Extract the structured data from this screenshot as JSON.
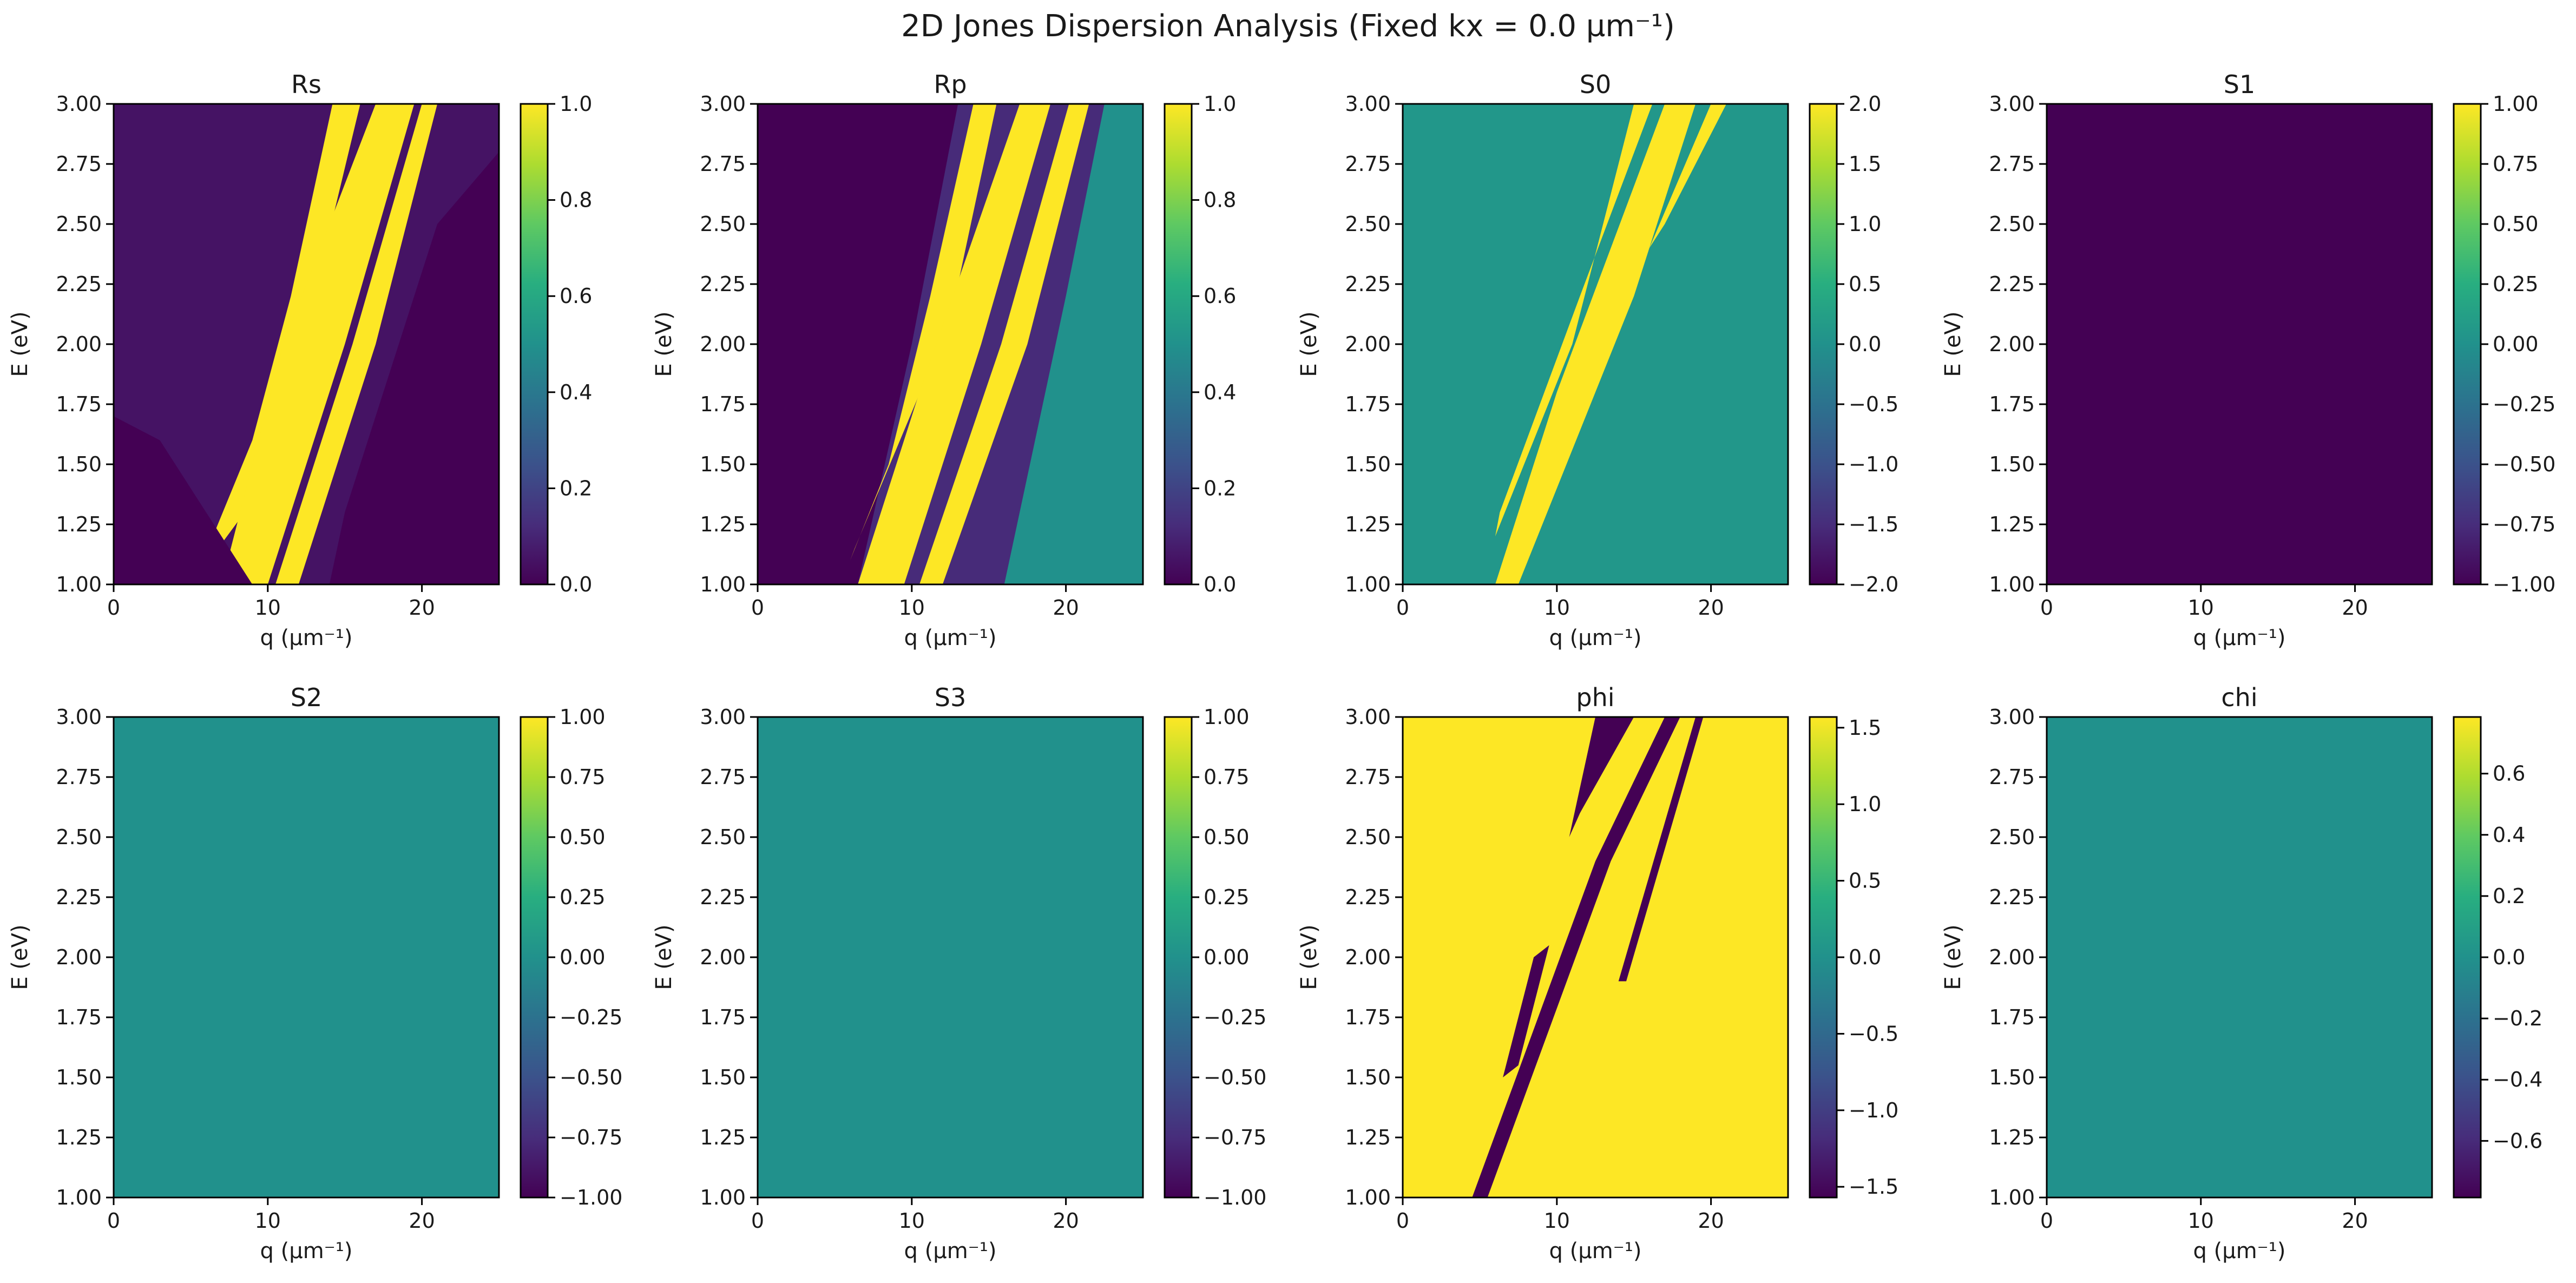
{
  "figure": {
    "title": "2D Jones Dispersion Analysis (Fixed kx = 0.0 µm⁻¹)"
  },
  "chart_data": [
    {
      "type": "heatmap",
      "title": "Rs",
      "xlabel": "q (µm⁻¹)",
      "ylabel": "E (eV)",
      "xlim": [
        0,
        25
      ],
      "ylim": [
        1.0,
        3.0
      ],
      "colormap": "viridis",
      "color_range": [
        0.0,
        1.0
      ],
      "background_value": 0.05,
      "xticks": [
        "0",
        "10",
        "20"
      ],
      "yticks": [
        "1.00",
        "1.25",
        "1.50",
        "1.75",
        "2.00",
        "2.25",
        "2.50",
        "2.75",
        "3.00"
      ],
      "colorbar_ticks": [
        {
          "value": 0.0,
          "label": "0.0"
        },
        {
          "value": 0.2,
          "label": "0.2"
        },
        {
          "value": 0.4,
          "label": "0.4"
        },
        {
          "value": 0.6,
          "label": "0.6"
        },
        {
          "value": 0.8,
          "label": "0.8"
        },
        {
          "value": 1.0,
          "label": "1.0"
        }
      ],
      "features": [
        {
          "kind": "band",
          "value": 1.0,
          "path": [
            [
              5.8,
              1.1
            ],
            [
              9.0,
              1.6
            ],
            [
              11.5,
              2.2
            ],
            [
              14.2,
              3.0
            ],
            [
              16.0,
              3.0
            ],
            [
              13.0,
              2.2
            ],
            [
              8.5,
              1.3
            ],
            [
              6.2,
              1.1
            ]
          ]
        },
        {
          "kind": "band",
          "value": 1.0,
          "path": [
            [
              7.0,
              1.0
            ],
            [
              10.0,
              1.0
            ],
            [
              15.0,
              2.0
            ],
            [
              19.5,
              3.0
            ],
            [
              17.0,
              3.0
            ],
            [
              11.0,
              2.0
            ]
          ]
        },
        {
          "kind": "band",
          "value": 1.0,
          "path": [
            [
              10.5,
              1.0
            ],
            [
              12.0,
              1.0
            ],
            [
              17.0,
              2.0
            ],
            [
              21.0,
              3.0
            ],
            [
              20.0,
              3.0
            ],
            [
              15.5,
              2.0
            ]
          ]
        },
        {
          "kind": "band",
          "value": 0.0,
          "path": [
            [
              0,
              1.0
            ],
            [
              9.0,
              1.0
            ],
            [
              3.0,
              1.6
            ],
            [
              0,
              1.7
            ]
          ]
        },
        {
          "kind": "band",
          "value": 0.0,
          "path": [
            [
              14.0,
              1.0
            ],
            [
              25.0,
              1.0
            ],
            [
              25.0,
              2.8
            ],
            [
              21.0,
              2.5
            ],
            [
              15.0,
              1.3
            ]
          ]
        }
      ]
    },
    {
      "type": "heatmap",
      "title": "Rp",
      "xlabel": "q (µm⁻¹)",
      "ylabel": "E (eV)",
      "xlim": [
        0,
        25
      ],
      "ylim": [
        1.0,
        3.0
      ],
      "colormap": "viridis",
      "color_range": [
        0.0,
        1.0
      ],
      "background_value": 0.12,
      "xticks": [
        "0",
        "10",
        "20"
      ],
      "yticks": [
        "1.00",
        "1.25",
        "1.50",
        "1.75",
        "2.00",
        "2.25",
        "2.50",
        "2.75",
        "3.00"
      ],
      "colorbar_ticks": [
        {
          "value": 0.0,
          "label": "0.0"
        },
        {
          "value": 0.2,
          "label": "0.2"
        },
        {
          "value": 0.4,
          "label": "0.4"
        },
        {
          "value": 0.6,
          "label": "0.6"
        },
        {
          "value": 0.8,
          "label": "0.8"
        },
        {
          "value": 1.0,
          "label": "1.0"
        }
      ],
      "features": [
        {
          "kind": "band",
          "value": 0.0,
          "path": [
            [
              0,
              1.0
            ],
            [
              6.5,
              1.0
            ],
            [
              10.0,
              2.0
            ],
            [
              13.0,
              3.0
            ],
            [
              0,
              3.0
            ]
          ]
        },
        {
          "kind": "band",
          "value": 0.5,
          "path": [
            [
              16.0,
              1.0
            ],
            [
              25.0,
              1.0
            ],
            [
              25.0,
              3.0
            ],
            [
              22.5,
              3.0
            ],
            [
              20.0,
              2.2
            ]
          ]
        },
        {
          "kind": "band",
          "value": 1.0,
          "path": [
            [
              6.0,
              1.1
            ],
            [
              8.5,
              1.5
            ],
            [
              11.2,
              2.2
            ],
            [
              14.0,
              3.0
            ],
            [
              15.5,
              3.0
            ],
            [
              12.5,
              2.1
            ],
            [
              6.3,
              1.15
            ]
          ]
        },
        {
          "kind": "band",
          "value": 1.0,
          "path": [
            [
              6.5,
              1.0
            ],
            [
              9.5,
              1.0
            ],
            [
              14.5,
              2.0
            ],
            [
              19.0,
              3.0
            ],
            [
              17.0,
              3.0
            ],
            [
              10.5,
              1.8
            ]
          ]
        },
        {
          "kind": "band",
          "value": 1.0,
          "path": [
            [
              10.5,
              1.0
            ],
            [
              12.0,
              1.0
            ],
            [
              17.5,
              2.0
            ],
            [
              21.5,
              3.0
            ],
            [
              20.2,
              3.0
            ],
            [
              15.8,
              2.0
            ]
          ]
        }
      ]
    },
    {
      "type": "heatmap",
      "title": "S0",
      "xlabel": "q (µm⁻¹)",
      "ylabel": "E (eV)",
      "xlim": [
        0,
        25
      ],
      "ylim": [
        1.0,
        3.0
      ],
      "colormap": "viridis",
      "color_range": [
        -2.0,
        2.0
      ],
      "background_value": 0.1,
      "xticks": [
        "0",
        "10",
        "20"
      ],
      "yticks": [
        "1.00",
        "1.25",
        "1.50",
        "1.75",
        "2.00",
        "2.25",
        "2.50",
        "2.75",
        "3.00"
      ],
      "colorbar_ticks": [
        {
          "value": -2.0,
          "label": "−2.0"
        },
        {
          "value": -1.5,
          "label": "−1.5"
        },
        {
          "value": -1.0,
          "label": "−1.0"
        },
        {
          "value": -0.5,
          "label": "−0.5"
        },
        {
          "value": 0.0,
          "label": "0.0"
        },
        {
          "value": 0.5,
          "label": "0.5"
        },
        {
          "value": 1.0,
          "label": "1.0"
        },
        {
          "value": 1.5,
          "label": "1.5"
        },
        {
          "value": 2.0,
          "label": "2.0"
        }
      ],
      "features": [
        {
          "kind": "band",
          "value": 2.0,
          "path": [
            [
              6.0,
              1.2
            ],
            [
              11.0,
              2.0
            ],
            [
              15.0,
              3.0
            ],
            [
              16.2,
              3.0
            ],
            [
              11.5,
              2.2
            ],
            [
              6.3,
              1.3
            ]
          ]
        },
        {
          "kind": "band",
          "value": 2.0,
          "path": [
            [
              6.0,
              1.0
            ],
            [
              7.5,
              1.0
            ],
            [
              15.0,
              2.2
            ],
            [
              19.0,
              3.0
            ],
            [
              17.0,
              3.0
            ],
            [
              10.0,
              1.8
            ]
          ]
        },
        {
          "kind": "band",
          "value": 2.0,
          "path": [
            [
              16.0,
              2.4
            ],
            [
              20.0,
              3.0
            ],
            [
              21.0,
              3.0
            ],
            [
              17.0,
              2.5
            ]
          ]
        }
      ]
    },
    {
      "type": "heatmap",
      "title": "S1",
      "xlabel": "q (µm⁻¹)",
      "ylabel": "E (eV)",
      "xlim": [
        0,
        25
      ],
      "ylim": [
        1.0,
        3.0
      ],
      "colormap": "viridis",
      "color_range": [
        -1.0,
        1.0
      ],
      "background_value": -1.0,
      "xticks": [
        "0",
        "10",
        "20"
      ],
      "yticks": [
        "1.00",
        "1.25",
        "1.50",
        "1.75",
        "2.00",
        "2.25",
        "2.50",
        "2.75",
        "3.00"
      ],
      "colorbar_ticks": [
        {
          "value": -1.0,
          "label": "−1.00"
        },
        {
          "value": -0.75,
          "label": "−0.75"
        },
        {
          "value": -0.5,
          "label": "−0.50"
        },
        {
          "value": -0.25,
          "label": "−0.25"
        },
        {
          "value": 0.0,
          "label": "0.00"
        },
        {
          "value": 0.25,
          "label": "0.25"
        },
        {
          "value": 0.5,
          "label": "0.50"
        },
        {
          "value": 0.75,
          "label": "0.75"
        },
        {
          "value": 1.0,
          "label": "1.00"
        }
      ],
      "features": []
    },
    {
      "type": "heatmap",
      "title": "S2",
      "xlabel": "q (µm⁻¹)",
      "ylabel": "E (eV)",
      "xlim": [
        0,
        25
      ],
      "ylim": [
        1.0,
        3.0
      ],
      "colormap": "viridis",
      "color_range": [
        -1.0,
        1.0
      ],
      "background_value": 0.0,
      "xticks": [
        "0",
        "10",
        "20"
      ],
      "yticks": [
        "1.00",
        "1.25",
        "1.50",
        "1.75",
        "2.00",
        "2.25",
        "2.50",
        "2.75",
        "3.00"
      ],
      "colorbar_ticks": [
        {
          "value": -1.0,
          "label": "−1.00"
        },
        {
          "value": -0.75,
          "label": "−0.75"
        },
        {
          "value": -0.5,
          "label": "−0.50"
        },
        {
          "value": -0.25,
          "label": "−0.25"
        },
        {
          "value": 0.0,
          "label": "0.00"
        },
        {
          "value": 0.25,
          "label": "0.25"
        },
        {
          "value": 0.5,
          "label": "0.50"
        },
        {
          "value": 0.75,
          "label": "0.75"
        },
        {
          "value": 1.0,
          "label": "1.00"
        }
      ],
      "features": []
    },
    {
      "type": "heatmap",
      "title": "S3",
      "xlabel": "q (µm⁻¹)",
      "ylabel": "E (eV)",
      "xlim": [
        0,
        25
      ],
      "ylim": [
        1.0,
        3.0
      ],
      "colormap": "viridis",
      "color_range": [
        -1.0,
        1.0
      ],
      "background_value": 0.0,
      "xticks": [
        "0",
        "10",
        "20"
      ],
      "yticks": [
        "1.00",
        "1.25",
        "1.50",
        "1.75",
        "2.00",
        "2.25",
        "2.50",
        "2.75",
        "3.00"
      ],
      "colorbar_ticks": [
        {
          "value": -1.0,
          "label": "−1.00"
        },
        {
          "value": -0.75,
          "label": "−0.75"
        },
        {
          "value": -0.5,
          "label": "−0.50"
        },
        {
          "value": -0.25,
          "label": "−0.25"
        },
        {
          "value": 0.0,
          "label": "0.00"
        },
        {
          "value": 0.25,
          "label": "0.25"
        },
        {
          "value": 0.5,
          "label": "0.50"
        },
        {
          "value": 0.75,
          "label": "0.75"
        },
        {
          "value": 1.0,
          "label": "1.00"
        }
      ],
      "features": []
    },
    {
      "type": "heatmap",
      "title": "phi",
      "xlabel": "q (µm⁻¹)",
      "ylabel": "E (eV)",
      "xlim": [
        0,
        25
      ],
      "ylim": [
        1.0,
        3.0
      ],
      "colormap": "viridis",
      "color_range": [
        -1.57,
        1.57
      ],
      "background_value": 1.57,
      "xticks": [
        "0",
        "10",
        "20"
      ],
      "yticks": [
        "1.00",
        "1.25",
        "1.50",
        "1.75",
        "2.00",
        "2.25",
        "2.50",
        "2.75",
        "3.00"
      ],
      "colorbar_ticks": [
        {
          "value": -1.5,
          "label": "−1.5"
        },
        {
          "value": -1.0,
          "label": "−1.0"
        },
        {
          "value": -0.5,
          "label": "−0.5"
        },
        {
          "value": 0.0,
          "label": "0.0"
        },
        {
          "value": 0.5,
          "label": "0.5"
        },
        {
          "value": 1.0,
          "label": "1.0"
        },
        {
          "value": 1.5,
          "label": "1.5"
        }
      ],
      "features": [
        {
          "kind": "band",
          "value": -1.57,
          "path": [
            [
              6.5,
              1.5
            ],
            [
              8.5,
              2.0
            ],
            [
              9.5,
              2.05
            ],
            [
              7.5,
              1.55
            ]
          ]
        },
        {
          "kind": "band",
          "value": -1.57,
          "path": [
            [
              10.8,
              2.5
            ],
            [
              12.5,
              3.0
            ],
            [
              15.0,
              3.0
            ],
            [
              11.5,
              2.6
            ]
          ]
        },
        {
          "kind": "band",
          "value": -1.57,
          "path": [
            [
              4.5,
              1.0
            ],
            [
              5.5,
              1.0
            ],
            [
              13.5,
              2.4
            ],
            [
              18.0,
              3.0
            ],
            [
              17.0,
              3.0
            ],
            [
              12.5,
              2.4
            ]
          ]
        },
        {
          "kind": "band",
          "value": -1.57,
          "path": [
            [
              14.0,
              1.9
            ],
            [
              19.0,
              3.0
            ],
            [
              19.5,
              3.0
            ],
            [
              14.5,
              1.9
            ]
          ]
        }
      ]
    },
    {
      "type": "heatmap",
      "title": "chi",
      "xlabel": "q (µm⁻¹)",
      "ylabel": "E (eV)",
      "xlim": [
        0,
        25
      ],
      "ylim": [
        1.0,
        3.0
      ],
      "colormap": "viridis",
      "color_range": [
        -0.785,
        0.785
      ],
      "background_value": 0.0,
      "xticks": [
        "0",
        "10",
        "20"
      ],
      "yticks": [
        "1.00",
        "1.25",
        "1.50",
        "1.75",
        "2.00",
        "2.25",
        "2.50",
        "2.75",
        "3.00"
      ],
      "colorbar_ticks": [
        {
          "value": -0.6,
          "label": "−0.6"
        },
        {
          "value": -0.4,
          "label": "−0.4"
        },
        {
          "value": -0.2,
          "label": "−0.2"
        },
        {
          "value": 0.0,
          "label": "0.0"
        },
        {
          "value": 0.2,
          "label": "0.2"
        },
        {
          "value": 0.4,
          "label": "0.4"
        },
        {
          "value": 0.6,
          "label": "0.6"
        }
      ],
      "features": []
    }
  ]
}
